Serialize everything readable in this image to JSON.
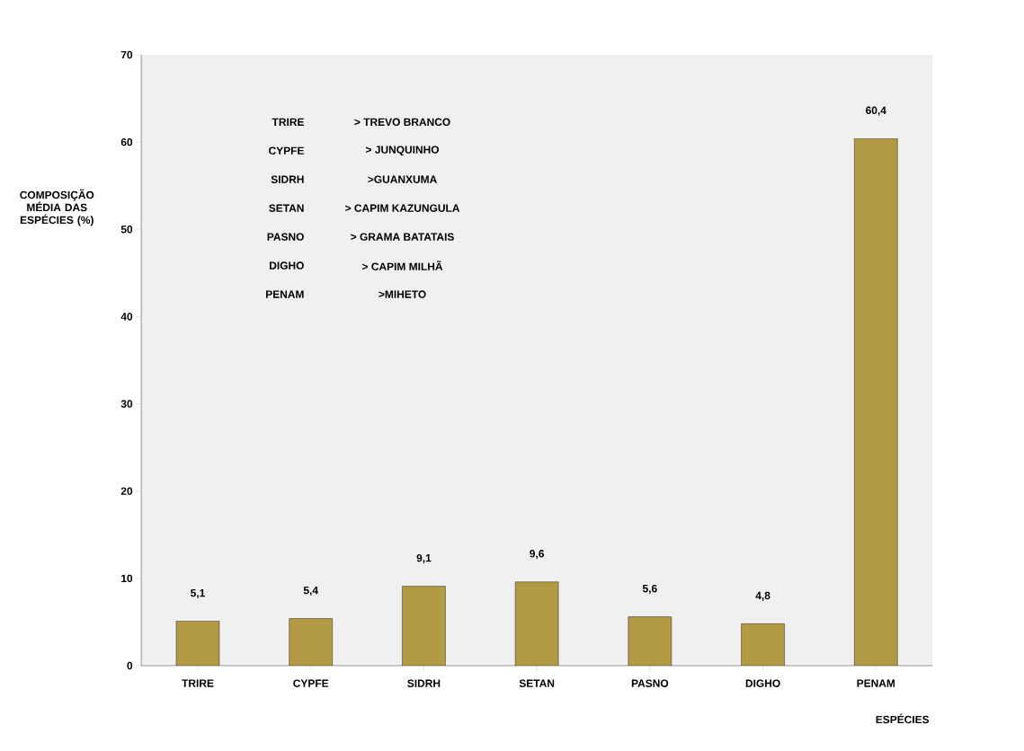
{
  "chart_data": {
    "type": "bar",
    "xlabel": "ESPÉCIES",
    "ylabel": "COMPOSIÇÃO MÉDIA DAS ESPÉCIES (%)",
    "categories": [
      "TRIRE",
      "CYPFE",
      "SIDRH",
      "SETAN",
      "PASNO",
      "DIGHO",
      "PENAM"
    ],
    "values": [
      5.1,
      5.4,
      9.1,
      9.6,
      5.6,
      4.8,
      60.4
    ],
    "color": "#b39a45",
    "ylim": [
      0,
      70
    ],
    "yticks": [
      0,
      10,
      20,
      30,
      40,
      50,
      60,
      70
    ],
    "value_labels": [
      "5,1",
      "5,4",
      "9,1",
      "9,6",
      "5,6",
      "4,8",
      "60,4"
    ],
    "annotations": [
      "TRIRE",
      "> TREVO  BRANCO",
      "CYPFE",
      "> JUNQUINHO",
      "SIDRH",
      ">GUANXUMA",
      "SETAN",
      "> CAPIM KAZUNGULA",
      "PASNO",
      "> GRAMA BATATAIS",
      "DIGHO",
      "> CAPIM MILHÃ",
      "PENAM",
      ">MIHETO"
    ]
  }
}
